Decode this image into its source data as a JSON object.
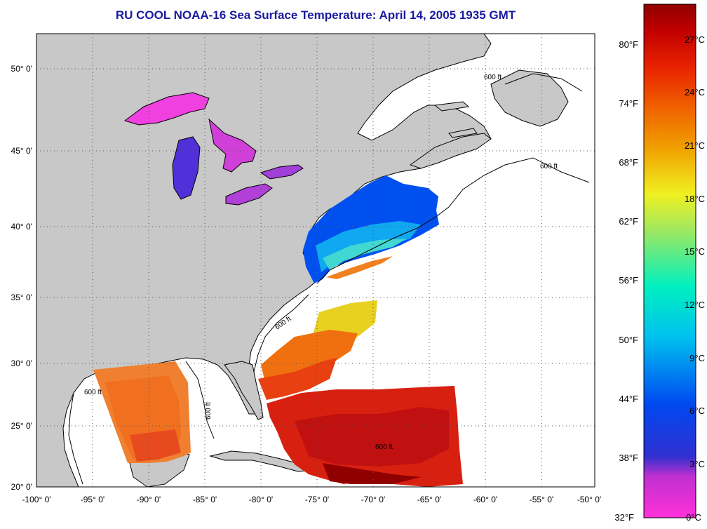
{
  "title": "RU COOL  NOAA-16  Sea Surface Temperature:  April 14, 2005 1935 GMT",
  "map": {
    "lon_ticks": [
      "-100° 0'",
      "-95° 0'",
      "-90° 0'",
      "-85° 0'",
      "-80° 0'",
      "-75° 0'",
      "-70° 0'",
      "-65° 0'",
      "-60° 0'",
      "-55° 0'",
      "-50° 0'"
    ],
    "lat_ticks": [
      "50° 0'",
      "45° 0'",
      "40° 0'",
      "35° 0'",
      "30° 0'",
      "25° 0'",
      "20° 0'"
    ],
    "lon_range": [
      -100,
      -50
    ],
    "lat_range": [
      20,
      52.5
    ],
    "grid": "dotted",
    "land_color": "#c8c8c8",
    "water_color": "#ffffff",
    "isobath_label": "600 ft",
    "isobath_labels": [
      "600 ft",
      "600 ft",
      "600 ft",
      "600 ft",
      "600 ft",
      "600 ft"
    ]
  },
  "colorbar": {
    "celsius_ticks": [
      "27°C",
      "24°C",
      "21°C",
      "18°C",
      "15°C",
      "12°C",
      "9°C",
      "6°C",
      "3°C",
      "0°C"
    ],
    "fahrenheit_ticks": [
      "80°F",
      "74°F",
      "68°F",
      "62°F",
      "56°F",
      "50°F",
      "44°F",
      "38°F",
      "32°F"
    ],
    "range_c": [
      0,
      29
    ],
    "colors": [
      "#ff30d8",
      "#9a2ad0",
      "#3030d0",
      "#0060f0",
      "#00c8f0",
      "#00f0b8",
      "#a0e860",
      "#f0f020",
      "#f0a000",
      "#f06000",
      "#e82000",
      "#c00000",
      "#900000"
    ]
  }
}
